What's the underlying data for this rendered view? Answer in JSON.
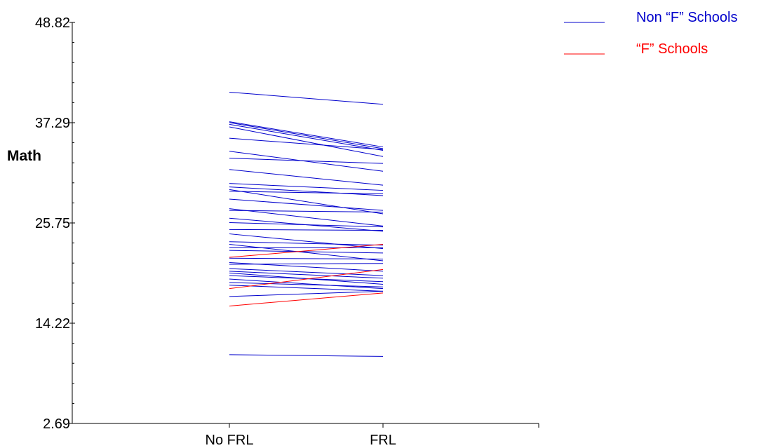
{
  "chart_data": {
    "type": "line",
    "title": "",
    "xlabel": "",
    "ylabel": "Math",
    "categories": [
      "No FRL",
      "FRL"
    ],
    "yticks": [
      "48.82",
      "37.29",
      "25.75",
      "14.22",
      "2.69"
    ],
    "ylim": [
      2.69,
      48.82
    ],
    "grid": false,
    "legend_position": "top-right",
    "legend": [
      {
        "name": "Non “F” Schools",
        "color": "#0000cc"
      },
      {
        "name": "“F” Schools",
        "color": "#ff0000"
      }
    ],
    "series": [
      {
        "group": "Non “F” Schools",
        "values": [
          40.8,
          39.4
        ]
      },
      {
        "group": "Non “F” Schools",
        "values": [
          37.4,
          34.5
        ]
      },
      {
        "group": "Non “F” Schools",
        "values": [
          37.3,
          34.3
        ]
      },
      {
        "group": "Non “F” Schools",
        "values": [
          37.1,
          34.1
        ]
      },
      {
        "group": "Non “F” Schools",
        "values": [
          36.8,
          33.4
        ]
      },
      {
        "group": "Non “F” Schools",
        "values": [
          35.5,
          34.2
        ]
      },
      {
        "group": "Non “F” Schools",
        "values": [
          34.0,
          31.7
        ]
      },
      {
        "group": "Non “F” Schools",
        "values": [
          33.2,
          32.6
        ]
      },
      {
        "group": "Non “F” Schools",
        "values": [
          31.9,
          30.1
        ]
      },
      {
        "group": "Non “F” Schools",
        "values": [
          30.3,
          29.5
        ]
      },
      {
        "group": "Non “F” Schools",
        "values": [
          29.9,
          28.9
        ]
      },
      {
        "group": "Non “F” Schools",
        "values": [
          29.6,
          26.8
        ]
      },
      {
        "group": "Non “F” Schools",
        "values": [
          29.4,
          29.1
        ]
      },
      {
        "group": "Non “F” Schools",
        "values": [
          28.5,
          27.2
        ]
      },
      {
        "group": "Non “F” Schools",
        "values": [
          27.4,
          25.4
        ]
      },
      {
        "group": "Non “F” Schools",
        "values": [
          27.2,
          27.0
        ]
      },
      {
        "group": "Non “F” Schools",
        "values": [
          26.3,
          24.8
        ]
      },
      {
        "group": "Non “F” Schools",
        "values": [
          25.8,
          25.3
        ]
      },
      {
        "group": "Non “F” Schools",
        "values": [
          25.0,
          24.9
        ]
      },
      {
        "group": "Non “F” Schools",
        "values": [
          24.5,
          22.8
        ]
      },
      {
        "group": "Non “F” Schools",
        "values": [
          23.6,
          23.2
        ]
      },
      {
        "group": "Non “F” Schools",
        "values": [
          23.3,
          21.4
        ]
      },
      {
        "group": "Non “F” Schools",
        "values": [
          22.9,
          22.9
        ]
      },
      {
        "group": "Non “F” Schools",
        "values": [
          22.6,
          22.3
        ]
      },
      {
        "group": "Non “F” Schools",
        "values": [
          21.7,
          21.6
        ]
      },
      {
        "group": "Non “F” Schools",
        "values": [
          21.2,
          20.2
        ]
      },
      {
        "group": "Non “F” Schools",
        "values": [
          21.0,
          21.1
        ]
      },
      {
        "group": "Non “F” Schools",
        "values": [
          20.5,
          19.7
        ]
      },
      {
        "group": "Non “F” Schools",
        "values": [
          20.2,
          19.4
        ]
      },
      {
        "group": "Non “F” Schools",
        "values": [
          20.0,
          18.7
        ]
      },
      {
        "group": "Non “F” Schools",
        "values": [
          19.7,
          19.0
        ]
      },
      {
        "group": "Non “F” Schools",
        "values": [
          19.3,
          18.2
        ]
      },
      {
        "group": "Non “F” Schools",
        "values": [
          18.9,
          18.4
        ]
      },
      {
        "group": "Non “F” Schools",
        "values": [
          18.6,
          17.9
        ]
      },
      {
        "group": "Non “F” Schools",
        "values": [
          17.3,
          17.9
        ]
      },
      {
        "group": "Non “F” Schools",
        "values": [
          10.6,
          10.4
        ]
      },
      {
        "group": "“F” Schools",
        "values": [
          21.8,
          23.3
        ]
      },
      {
        "group": "“F” Schools",
        "values": [
          18.2,
          20.4
        ]
      },
      {
        "group": "“F” Schools",
        "values": [
          16.2,
          17.7
        ]
      }
    ]
  }
}
